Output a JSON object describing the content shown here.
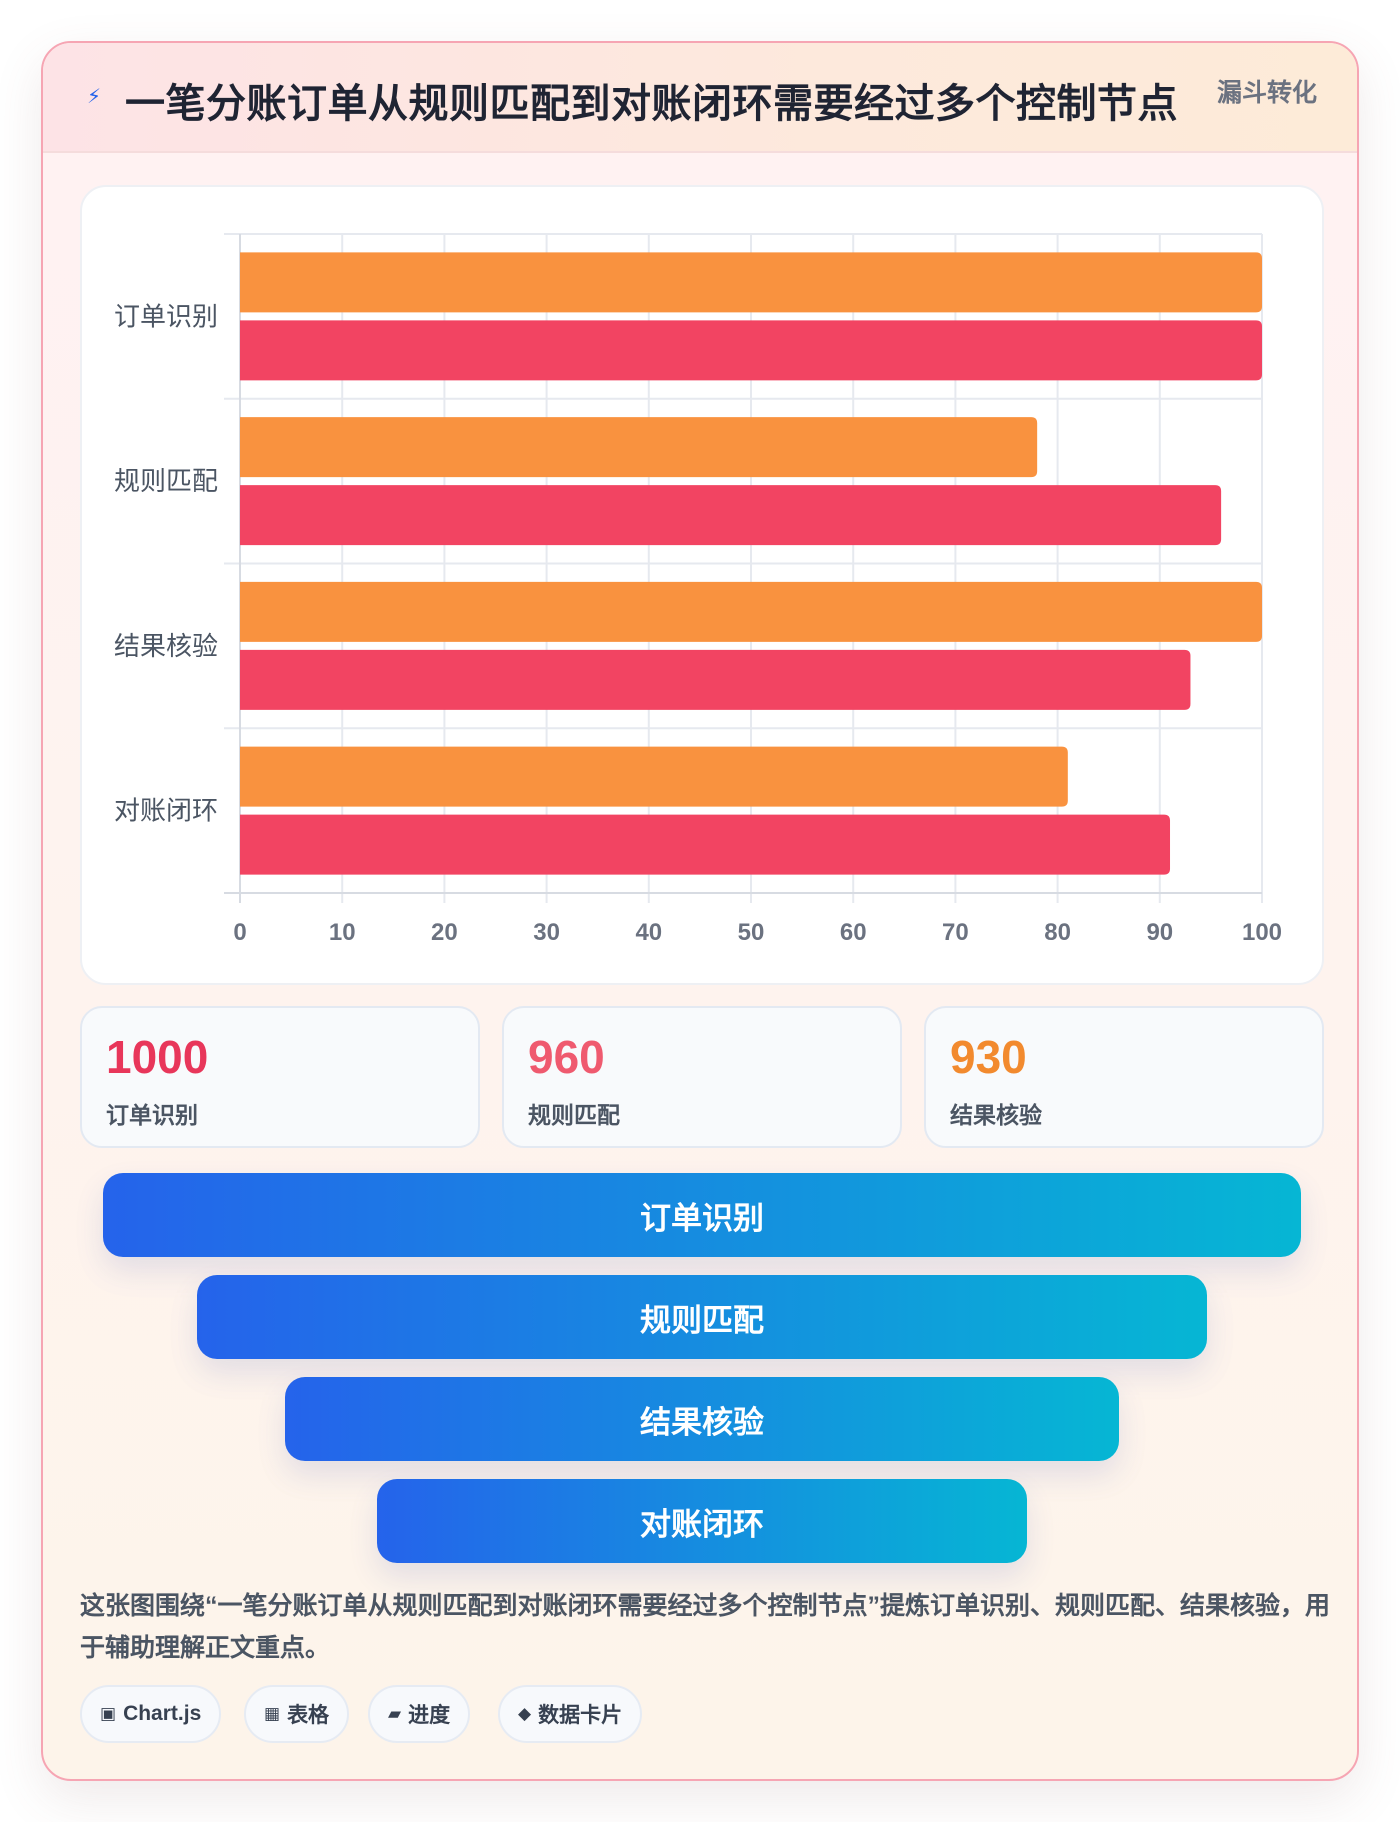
{
  "header": {
    "icon": "lightning-icon",
    "title": "一笔分账订单从规则匹配到对账闭环需要经过多个控制节点",
    "tag": "漏斗转化"
  },
  "chart_data": {
    "type": "bar",
    "orientation": "horizontal",
    "categories": [
      "订单识别",
      "规则匹配",
      "结果核验",
      "对账闭环"
    ],
    "series": [
      {
        "values": [
          100,
          78,
          100,
          81
        ],
        "color": "#f9923f"
      },
      {
        "values": [
          100,
          96,
          93,
          91
        ],
        "color": "#f24462"
      }
    ],
    "xlim": [
      0,
      100
    ],
    "xticks": [
      "0",
      "10",
      "20",
      "30",
      "40",
      "50",
      "60",
      "70",
      "80",
      "90",
      "100"
    ],
    "grid": true,
    "legend": "none"
  },
  "stats": [
    {
      "value": "1000",
      "label": "订单识别",
      "color": "#e8365a"
    },
    {
      "value": "960",
      "label": "规则匹配",
      "color": "#ef5a6f"
    },
    {
      "value": "930",
      "label": "结果核验",
      "color": "#f28a2e"
    }
  ],
  "funnel": [
    {
      "label": "订单识别"
    },
    {
      "label": "规则匹配"
    },
    {
      "label": "结果核验"
    },
    {
      "label": "对账闭环"
    }
  ],
  "description": "这张图围绕“一笔分账订单从规则匹配到对账闭环需要经过多个控制节点”提炼订单识别、规则匹配、结果核验，用于辅助理解正文重点。",
  "chips": [
    {
      "icon": "▣",
      "label": "Chart.js"
    },
    {
      "icon": "▦",
      "label": "表格"
    },
    {
      "icon": "▰",
      "label": "进度"
    },
    {
      "icon": "◆",
      "label": "数据卡片"
    }
  ]
}
